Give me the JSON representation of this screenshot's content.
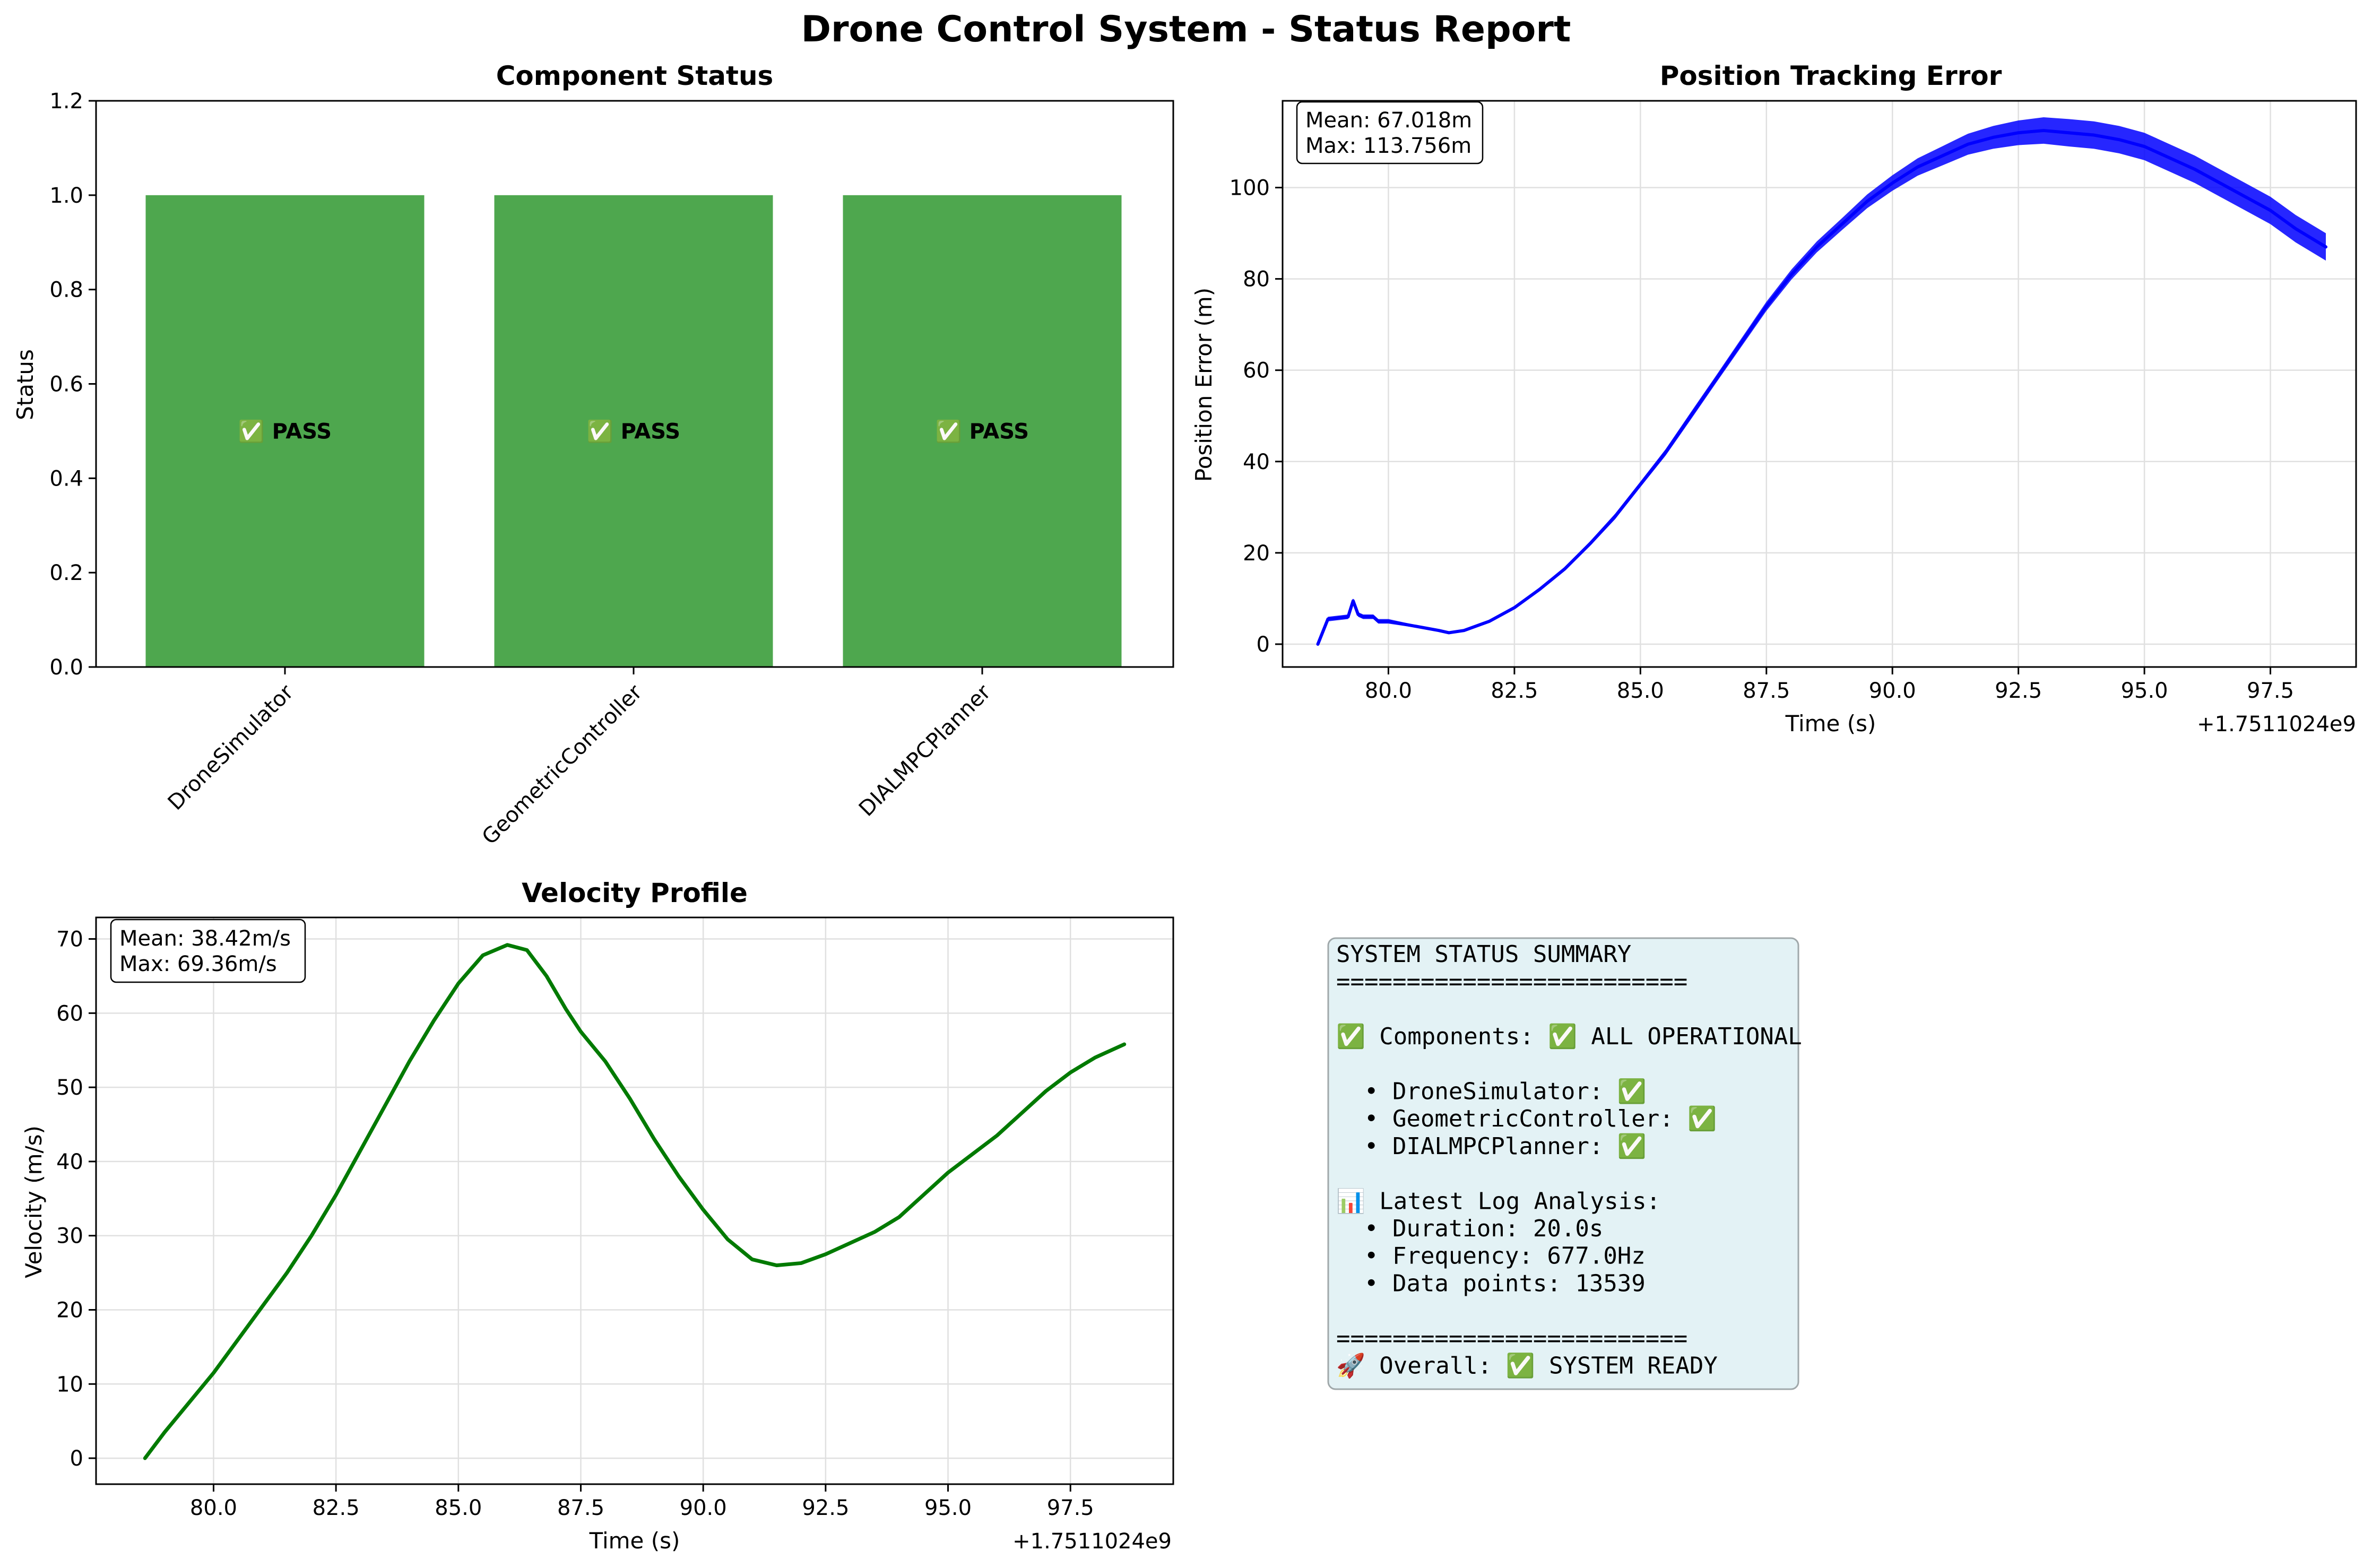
{
  "figure": {
    "title": "Drone Control System - Status Report"
  },
  "colors": {
    "pass_bar": "#4ea74e",
    "error_line": "#0000ff",
    "velocity_line": "#007a00",
    "summary_bg": "#e3f2f5",
    "summary_border": "#a0a8aa"
  },
  "chart_data": [
    {
      "type": "bar",
      "title": "Component Status",
      "xlabel": "",
      "ylabel": "Status",
      "categories": [
        "DroneSimulator",
        "GeometricController",
        "DIALMPCPlanner"
      ],
      "values": [
        1.0,
        1.0,
        1.0
      ],
      "bar_labels": [
        "✅ PASS",
        "✅ PASS",
        "✅ PASS"
      ],
      "ylim": [
        0,
        1.2
      ],
      "yticks": [
        "0.0",
        "0.2",
        "0.4",
        "0.6",
        "0.8",
        "1.0",
        "1.2"
      ],
      "grid": false
    },
    {
      "type": "line",
      "title": "Position Tracking Error",
      "xlabel": "Time (s)",
      "ylabel": "Position Error (m)",
      "x_offset_label": "+1.7511024e9",
      "xticks": [
        "80.0",
        "82.5",
        "85.0",
        "87.5",
        "90.0",
        "92.5",
        "95.0",
        "97.5"
      ],
      "yticks": [
        "0",
        "20",
        "40",
        "60",
        "80",
        "100"
      ],
      "xlim": [
        77.9,
        99.2
      ],
      "ylim": [
        -5,
        119
      ],
      "grid": true,
      "annotation": [
        "Mean: 67.018m",
        "Max: 113.756m"
      ],
      "series": [
        {
          "x": [
            78.6,
            78.8,
            79.2,
            79.3,
            79.4,
            79.5,
            79.7,
            79.8,
            80.0,
            80.5,
            81.0,
            81.2,
            81.5,
            82.0,
            82.5,
            83.0,
            83.5,
            84.0,
            84.5,
            85.0,
            85.5,
            86.0,
            86.5,
            87.0,
            87.5,
            88.0,
            88.5,
            89.0,
            89.5,
            90.0,
            90.5,
            91.0,
            91.5,
            92.0,
            92.5,
            93.0,
            93.5,
            94.0,
            94.5,
            95.0,
            95.5,
            96.0,
            96.5,
            97.0,
            97.5,
            98.0,
            98.6
          ],
          "y": [
            0,
            5.5,
            6,
            9.5,
            6.5,
            6,
            6,
            5,
            5,
            4,
            3,
            2.5,
            3,
            5,
            8,
            12,
            16.5,
            22,
            28,
            35,
            42,
            50,
            58,
            66,
            74,
            81,
            87,
            92,
            97,
            101,
            104.5,
            107,
            109.5,
            111,
            112,
            112.5,
            112,
            111.5,
            110.5,
            109,
            106.5,
            104,
            101,
            98,
            95,
            91,
            87
          ],
          "band": [
            0,
            0.5,
            0.5,
            0.5,
            0.5,
            0.5,
            0.5,
            0.5,
            0.5,
            0.3,
            0.3,
            0.3,
            0.3,
            0.3,
            0.3,
            0.3,
            0.4,
            0.5,
            0.6,
            0.6,
            0.7,
            0.8,
            0.8,
            0.9,
            1,
            1.1,
            1.2,
            1.3,
            1.5,
            1.7,
            1.9,
            2.1,
            2.3,
            2.5,
            2.7,
            2.9,
            3.0,
            3.0,
            3.0,
            3.0,
            3.0,
            3.0,
            3.0,
            3.0,
            3.0,
            3.0,
            3.0
          ]
        }
      ]
    },
    {
      "type": "line",
      "title": "Velocity Profile",
      "xlabel": "Time (s)",
      "ylabel": "Velocity (m/s)",
      "x_offset_label": "+1.7511024e9",
      "xticks": [
        "80.0",
        "82.5",
        "85.0",
        "87.5",
        "90.0",
        "92.5",
        "95.0",
        "97.5"
      ],
      "yticks": [
        "0",
        "10",
        "20",
        "30",
        "40",
        "50",
        "60",
        "70"
      ],
      "xlim": [
        77.6,
        99.6
      ],
      "ylim": [
        -3.5,
        72.9
      ],
      "grid": true,
      "annotation": [
        "Mean: 38.42m/s",
        "Max: 69.36m/s"
      ],
      "series": [
        {
          "x": [
            78.6,
            79.0,
            79.5,
            80.0,
            80.5,
            81.0,
            81.5,
            82.0,
            82.5,
            83.0,
            83.5,
            84.0,
            84.5,
            85.0,
            85.5,
            86.0,
            86.4,
            86.8,
            87.2,
            87.5,
            88.0,
            88.5,
            89.0,
            89.5,
            90.0,
            90.5,
            91.0,
            91.5,
            92.0,
            92.5,
            93.0,
            93.5,
            94.0,
            94.5,
            95.0,
            95.5,
            96.0,
            96.5,
            97.0,
            97.5,
            98.0,
            98.6
          ],
          "y": [
            0,
            3.5,
            7.5,
            11.5,
            16,
            20.5,
            25,
            30,
            35.5,
            41.5,
            47.5,
            53.5,
            59,
            64,
            67.8,
            69.2,
            68.5,
            65,
            60.5,
            57.5,
            53.5,
            48.5,
            43,
            38,
            33.5,
            29.5,
            26.8,
            26,
            26.3,
            27.5,
            29,
            30.5,
            32.5,
            35.5,
            38.5,
            41,
            43.5,
            46.5,
            49.5,
            52,
            54,
            55.8
          ]
        }
      ]
    }
  ],
  "summary": {
    "lines": [
      "SYSTEM STATUS SUMMARY",
      "=========================",
      "",
      "✅ Components: ✅ ALL OPERATIONAL",
      "",
      "  • DroneSimulator: ✅",
      "  • GeometricController: ✅",
      "  • DIALMPCPlanner: ✅",
      "",
      "📊 Latest Log Analysis:",
      "  • Duration: 20.0s",
      "  • Frequency: 677.0Hz",
      "  • Data points: 13539",
      "",
      "=========================",
      "🚀 Overall: ✅ SYSTEM READY"
    ]
  }
}
